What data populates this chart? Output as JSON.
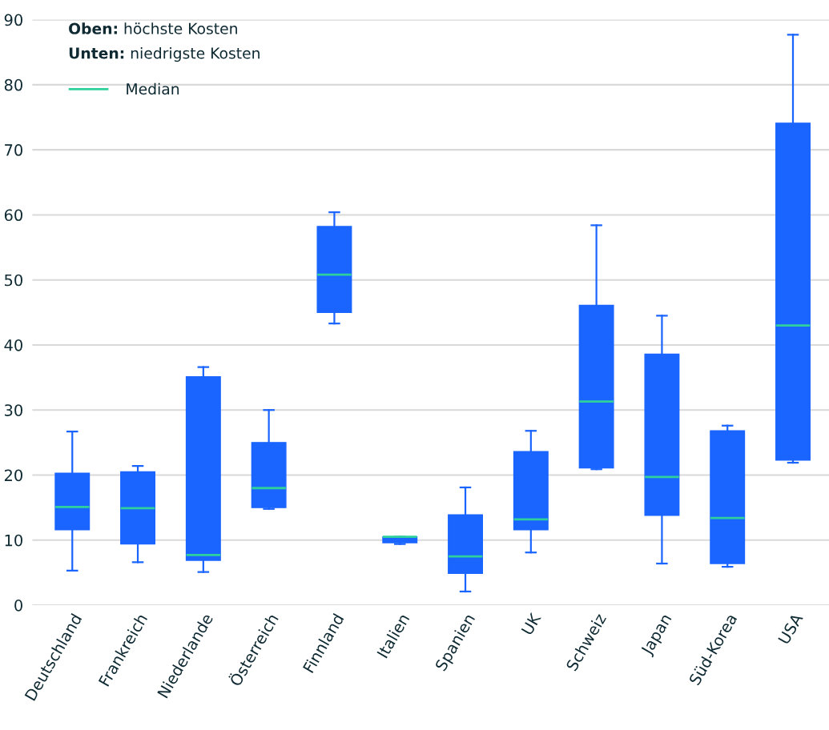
{
  "chart_data": {
    "type": "box",
    "categories": [
      "Deutschland",
      "Frankreich",
      "Niederlande",
      "Österreich",
      "Finnland",
      "Italien",
      "Spanien",
      "UK",
      "Schweiz",
      "Japan",
      "Süd-Korea",
      "USA"
    ],
    "series": [
      {
        "name": "Median",
        "color": "#1a64ff",
        "boxes": [
          {
            "low": 5.3,
            "q1": 11.6,
            "median": 15.1,
            "q3": 20.3,
            "high": 26.7
          },
          {
            "low": 6.6,
            "q1": 9.4,
            "median": 14.9,
            "q3": 20.5,
            "high": 21.4
          },
          {
            "low": 5.1,
            "q1": 6.9,
            "median": 7.7,
            "q3": 35.1,
            "high": 36.6
          },
          {
            "low": 14.8,
            "q1": 15.0,
            "median": 18.0,
            "q3": 25.0,
            "high": 30.0
          },
          {
            "low": 43.3,
            "q1": 45.0,
            "median": 50.8,
            "q3": 58.2,
            "high": 60.4
          },
          {
            "low": 9.4,
            "q1": 9.6,
            "median": 10.5,
            "q3": 10.5,
            "high": 10.5
          },
          {
            "low": 2.1,
            "q1": 4.9,
            "median": 7.5,
            "q3": 13.9,
            "high": 18.1
          },
          {
            "low": 8.1,
            "q1": 11.6,
            "median": 13.2,
            "q3": 23.6,
            "high": 26.8
          },
          {
            "low": 20.9,
            "q1": 21.1,
            "median": 31.3,
            "q3": 46.1,
            "high": 58.4
          },
          {
            "low": 6.4,
            "q1": 13.8,
            "median": 19.7,
            "q3": 38.6,
            "high": 44.5
          },
          {
            "low": 5.9,
            "q1": 6.4,
            "median": 13.4,
            "q3": 26.8,
            "high": 27.6
          },
          {
            "low": 21.9,
            "q1": 22.3,
            "median": 43.0,
            "q3": 74.1,
            "high": 87.7
          }
        ]
      }
    ],
    "ylim": [
      0,
      90
    ],
    "yticks": [
      0,
      10,
      20,
      30,
      40,
      50,
      60,
      70,
      80,
      90
    ],
    "grid": "y",
    "legend": "top left",
    "annotations": [
      "Oben: höchste Kosten",
      "Unten: niedrigste Kosten"
    ]
  }
}
